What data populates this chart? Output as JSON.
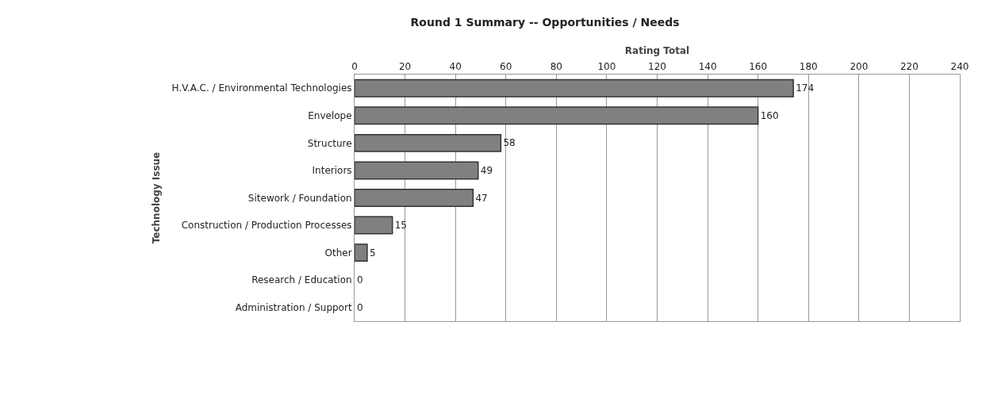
{
  "chart_data": {
    "type": "bar",
    "orientation": "horizontal",
    "title": "Round 1 Summary -- Opportunities / Needs",
    "xlabel": "Rating Total",
    "ylabel": "Technology Issue",
    "categories": [
      "H.V.A.C. / Environmental Technologies",
      "Envelope",
      "Structure",
      "Interiors",
      "Sitework / Foundation",
      "Construction / Production Processes",
      "Other",
      "Research / Education",
      "Administration / Support"
    ],
    "values": [
      174,
      160,
      58,
      49,
      47,
      15,
      5,
      0,
      0
    ],
    "color": "#808080",
    "xlim": [
      0,
      240
    ],
    "xticks": [
      0,
      20,
      40,
      60,
      80,
      100,
      120,
      140,
      160,
      180,
      200,
      220,
      240
    ],
    "grid": "x",
    "data_labels": true,
    "legend": false
  }
}
